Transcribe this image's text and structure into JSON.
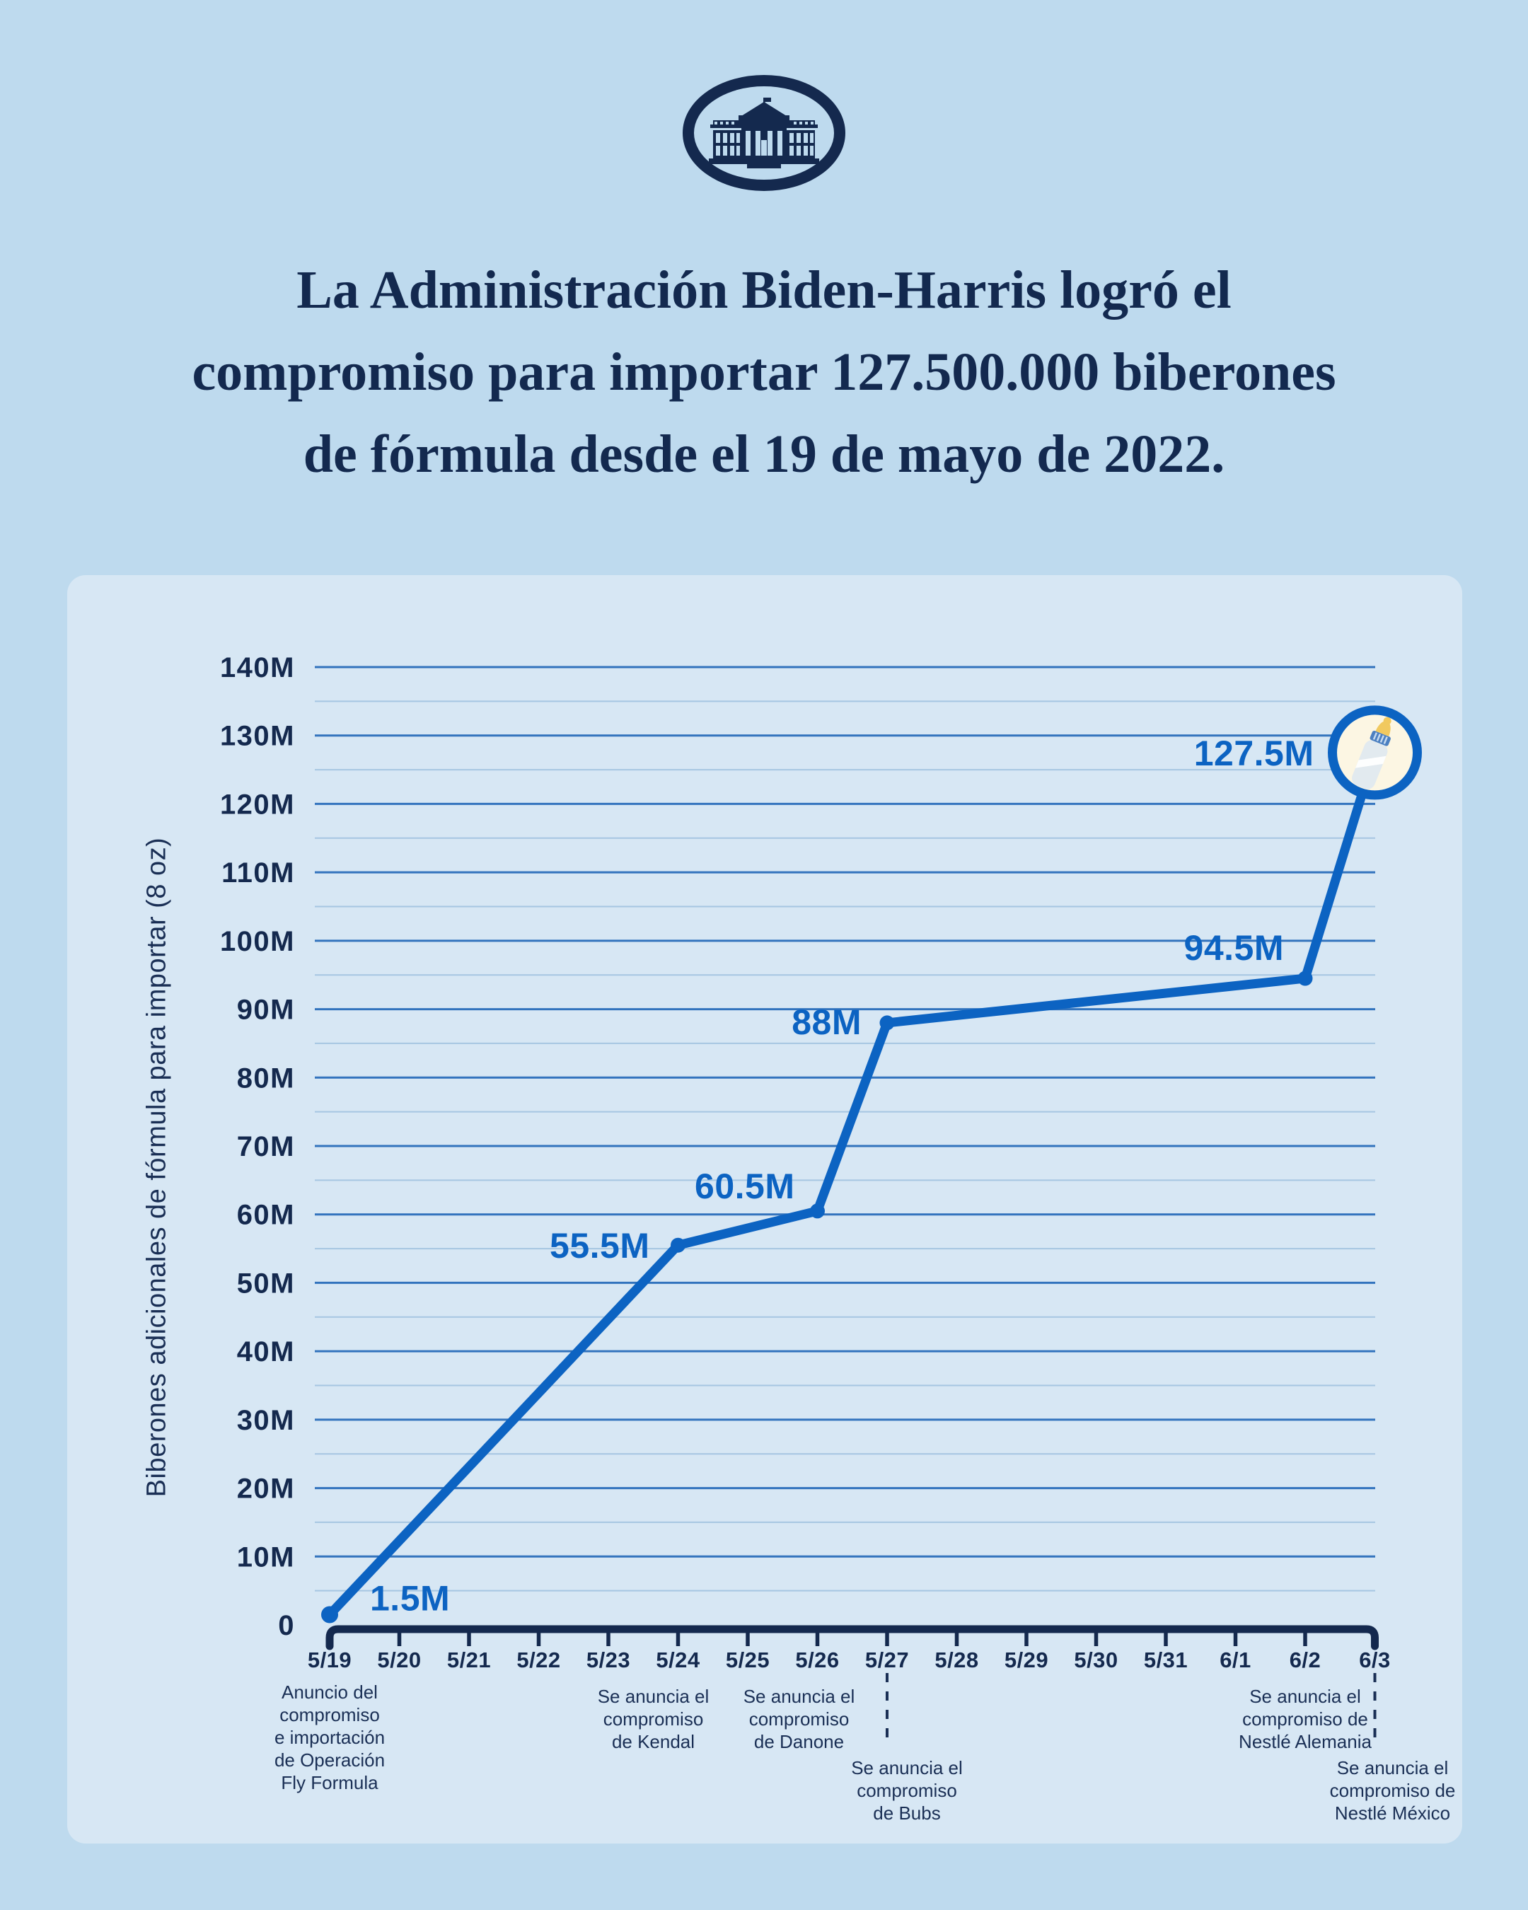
{
  "colors": {
    "page_bg": "#BEDAEE",
    "panel_bg": "#D7E7F4",
    "navy": "#14294E",
    "title_navy": "#13294F",
    "annotation_navy": "#1A2F55",
    "line_blue": "#0C63C2",
    "grid_major": "#3273BD",
    "grid_minor": "#A6C6E2",
    "bottle_circle_fill": "#FCF6E3",
    "bottle_nipple": "#F1C95F",
    "bottle_collar": "#4C80C1",
    "bottle_body": "#E2EAEF"
  },
  "header": {
    "logo": "white-house-seal",
    "title_lines": [
      "La Administración Biden-Harris logró el",
      "compromiso para importar 127.500.000 biberones",
      "de fórmula desde el 19 de mayo de 2022."
    ]
  },
  "chart_data": {
    "type": "line",
    "title": "",
    "xlabel": "",
    "ylabel": "Biberones adicionales de fórmula para importar (8 oz)",
    "ylim_millions": [
      0,
      140
    ],
    "grid": {
      "major_step_millions": 10,
      "minor_step_millions": 5,
      "grid_on": true
    },
    "x_categories": [
      "5/19",
      "5/20",
      "5/21",
      "5/22",
      "5/23",
      "5/24",
      "5/25",
      "5/26",
      "5/27",
      "5/28",
      "5/29",
      "5/30",
      "5/31",
      "6/1",
      "6/2",
      "6/3"
    ],
    "y_axis": {
      "ticks": [
        {
          "value": 140,
          "label": "140M"
        },
        {
          "value": 130,
          "label": "130M"
        },
        {
          "value": 120,
          "label": "120M"
        },
        {
          "value": 110,
          "label": "110M"
        },
        {
          "value": 100,
          "label": "100M"
        },
        {
          "value": 90,
          "label": "90M"
        },
        {
          "value": 80,
          "label": "80M"
        },
        {
          "value": 70,
          "label": "70M"
        },
        {
          "value": 60,
          "label": "60M"
        },
        {
          "value": 50,
          "label": "50M"
        },
        {
          "value": 40,
          "label": "40M"
        },
        {
          "value": 30,
          "label": "30M"
        },
        {
          "value": 20,
          "label": "20M"
        },
        {
          "value": 10,
          "label": "10M"
        },
        {
          "value": 0,
          "label": "0"
        }
      ]
    },
    "series": [
      {
        "name": "biberones-comprometidos",
        "points": [
          {
            "x": "5/19",
            "value_millions": 1.5,
            "label": "1.5M",
            "label_anchor": "start",
            "label_dx": 57,
            "label_dy": -6,
            "marker": "dot"
          },
          {
            "x": "5/24",
            "value_millions": 55.5,
            "label": "55.5M",
            "label_anchor": "end",
            "label_dx": -40,
            "label_dy": 18,
            "marker": "dot"
          },
          {
            "x": "5/26",
            "value_millions": 60.5,
            "label": "60.5M",
            "label_anchor": "end",
            "label_dx": -32,
            "label_dy": -18,
            "marker": "dot"
          },
          {
            "x": "5/27",
            "value_millions": 88,
            "label": "88M",
            "label_anchor": "end",
            "label_dx": -36,
            "label_dy": 16,
            "marker": "dot"
          },
          {
            "x": "6/2",
            "value_millions": 94.5,
            "label": "94.5M",
            "label_anchor": "end",
            "label_dx": -30,
            "label_dy": -26,
            "marker": "dot"
          },
          {
            "x": "6/3",
            "value_millions": 127.5,
            "label": "127.5M",
            "label_anchor": "end",
            "label_dx": -86,
            "label_dy": 18,
            "marker": "bottle-circle"
          }
        ]
      }
    ],
    "annotations": [
      {
        "tick": "5/19",
        "lines": [
          "Anuncio del",
          "compromiso",
          "e importación",
          "de Operación",
          "Fly Formula"
        ],
        "dashed": false,
        "dx": 0
      },
      {
        "tick": "5/24",
        "lines": [
          "Se anuncia el",
          "compromiso",
          "de Kendal"
        ],
        "dashed": false,
        "dx": -35
      },
      {
        "tick": "5/26",
        "lines": [
          "Se anuncia el",
          "compromiso",
          "de Danone"
        ],
        "dashed": false,
        "dx": -26
      },
      {
        "tick": "5/27",
        "lines": [
          "Se anuncia el",
          "compromiso",
          "de Bubs"
        ],
        "dashed": true,
        "dx": 28
      },
      {
        "tick": "6/2",
        "lines": [
          "Se anuncia el",
          "compromiso de",
          "Nestlé Alemania"
        ],
        "dashed": false,
        "dx": 0
      },
      {
        "tick": "6/3",
        "lines": [
          "Se anuncia el",
          "compromiso de",
          "Nestlé México"
        ],
        "dashed": true,
        "dx": 25
      }
    ],
    "legend": null
  }
}
